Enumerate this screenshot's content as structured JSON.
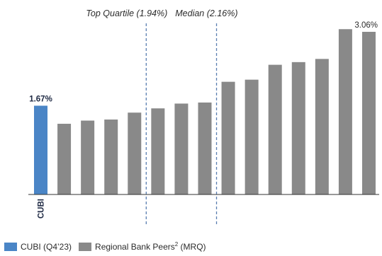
{
  "chart_data": {
    "type": "bar",
    "title": "",
    "xlabel": "",
    "ylabel": "",
    "ylim": [
      0,
      3.4
    ],
    "grid": false,
    "legend_position": "bottom-left",
    "series": [
      {
        "key": "cubi",
        "color": "#4a85c6",
        "categories": [
          "CUBI"
        ],
        "values": [
          1.67
        ],
        "value_labels": [
          "1.67%"
        ]
      },
      {
        "key": "peers",
        "color": "#898989",
        "values": [
          1.33,
          1.39,
          1.41,
          1.54,
          1.62,
          1.71,
          1.73,
          2.12,
          2.16,
          2.44,
          2.49,
          2.55,
          3.11,
          3.06
        ],
        "value_labels": [
          "",
          "",
          "",
          "",
          "",
          "",
          "",
          "",
          "",
          "",
          "",
          "",
          "",
          "3.06%"
        ]
      }
    ],
    "reference_lines": [
      {
        "label": "Top Quartile (1.94%)",
        "color": "#5b7fb1",
        "after_bar": 4
      },
      {
        "label": "Median (2.16%)",
        "color": "#5b7fb1",
        "after_bar": 7
      }
    ],
    "legend": [
      {
        "label": "CUBI (Q4’23)",
        "color": "#4a85c6"
      },
      {
        "label": "Regional Bank Peers",
        "superscript": "2",
        "suffix": " (MRQ)",
        "color": "#898989"
      }
    ]
  }
}
